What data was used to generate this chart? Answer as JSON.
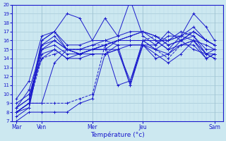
{
  "xlabel": "Température (°c)",
  "ylim": [
    7,
    20
  ],
  "xlim": [
    0,
    100
  ],
  "yticks": [
    7,
    8,
    9,
    10,
    11,
    12,
    13,
    14,
    15,
    16,
    17,
    18,
    19,
    20
  ],
  "xtick_positions": [
    2,
    14,
    38,
    62,
    96
  ],
  "xtick_labels": [
    "Mar",
    "Ven",
    "Mer",
    "Jeu",
    "Sam"
  ],
  "bg_color": "#cce8f0",
  "line_color": "#1a1acc",
  "grid_major_color": "#9bbfcf",
  "grid_minor_color": "#b8d8e8",
  "series": [
    {
      "x": [
        2,
        8,
        14,
        20,
        26,
        32,
        38,
        44,
        50,
        56,
        62,
        68,
        74,
        80,
        86,
        92,
        96
      ],
      "y": [
        7.5,
        8.5,
        16.0,
        17.0,
        15.5,
        15.5,
        16.0,
        18.5,
        16.5,
        20.5,
        16.5,
        15.5,
        16.5,
        16.5,
        19.0,
        17.5,
        16.0
      ],
      "dashed": false
    },
    {
      "x": [
        2,
        8,
        14,
        20,
        26,
        32,
        38,
        44,
        50,
        56,
        62,
        68,
        74,
        80,
        86,
        92,
        96
      ],
      "y": [
        8.0,
        9.0,
        15.5,
        16.0,
        15.0,
        15.0,
        15.5,
        16.0,
        15.5,
        11.0,
        16.0,
        15.0,
        16.0,
        17.0,
        16.5,
        14.5,
        15.0
      ],
      "dashed": false
    },
    {
      "x": [
        2,
        8,
        14,
        20,
        26,
        32,
        38,
        44,
        50,
        56,
        62,
        68,
        74,
        80,
        86,
        92,
        96
      ],
      "y": [
        8.0,
        8.5,
        15.0,
        15.5,
        14.5,
        14.5,
        15.0,
        15.5,
        11.0,
        11.5,
        16.0,
        16.0,
        16.0,
        16.5,
        16.0,
        14.0,
        14.5
      ],
      "dashed": false
    },
    {
      "x": [
        2,
        8,
        14,
        20,
        26,
        32,
        38,
        44,
        50,
        56,
        62,
        68,
        74,
        80,
        86,
        92,
        96
      ],
      "y": [
        8.5,
        9.5,
        14.5,
        15.0,
        14.0,
        14.5,
        15.0,
        15.0,
        15.0,
        11.0,
        15.5,
        14.0,
        14.5,
        15.5,
        15.5,
        14.0,
        14.5
      ],
      "dashed": false
    },
    {
      "x": [
        2,
        8,
        14,
        20,
        26,
        32,
        38,
        44,
        50,
        56,
        62,
        68,
        74,
        80,
        86,
        92,
        96
      ],
      "y": [
        9.0,
        10.0,
        14.0,
        15.0,
        14.0,
        14.0,
        14.5,
        14.5,
        15.0,
        11.5,
        15.5,
        15.5,
        17.0,
        16.0,
        15.0,
        14.5,
        14.5
      ],
      "dashed": false
    },
    {
      "x": [
        2,
        8,
        14,
        20,
        26,
        32,
        38,
        44,
        50,
        56,
        62,
        68,
        74,
        80,
        86,
        92,
        96
      ],
      "y": [
        8.0,
        9.0,
        14.0,
        14.5,
        15.0,
        15.0,
        15.5,
        15.5,
        16.0,
        16.0,
        16.0,
        15.0,
        14.0,
        15.5,
        16.0,
        14.5,
        14.0
      ],
      "dashed": true
    },
    {
      "x": [
        2,
        8,
        14,
        20,
        26,
        32,
        38,
        44,
        50,
        56,
        62,
        68,
        74,
        80,
        86,
        92,
        96
      ],
      "y": [
        8.5,
        10.5,
        15.0,
        16.0,
        15.0,
        15.0,
        15.0,
        15.0,
        16.0,
        16.5,
        17.0,
        16.0,
        15.0,
        16.5,
        17.5,
        16.0,
        15.5
      ],
      "dashed": false
    },
    {
      "x": [
        2,
        8,
        14,
        20,
        26,
        32,
        38,
        44,
        50,
        56,
        62,
        68,
        74,
        80,
        86,
        92,
        96
      ],
      "y": [
        8.0,
        9.0,
        9.0,
        13.5,
        15.0,
        14.5,
        14.5,
        14.5,
        15.5,
        15.5,
        15.5,
        14.5,
        13.5,
        14.5,
        16.0,
        14.5,
        14.0
      ],
      "dashed": false
    },
    {
      "x": [
        2,
        8,
        14,
        20,
        26,
        32,
        38,
        44,
        50,
        56,
        62,
        68,
        74,
        80,
        86,
        92,
        96
      ],
      "y": [
        7.0,
        8.0,
        8.0,
        8.0,
        8.0,
        9.0,
        9.5,
        14.5,
        15.0,
        15.5,
        15.5,
        15.0,
        14.5,
        16.0,
        16.5,
        15.0,
        15.0
      ],
      "dashed": false
    },
    {
      "x": [
        2,
        8,
        14,
        20,
        26,
        32,
        38,
        44,
        50,
        56,
        62,
        68,
        74,
        80,
        86,
        92,
        96
      ],
      "y": [
        9.5,
        11.5,
        16.5,
        17.0,
        15.0,
        14.5,
        15.0,
        15.5,
        16.0,
        16.5,
        17.0,
        16.5,
        15.5,
        16.0,
        17.0,
        16.0,
        15.5
      ],
      "dashed": false
    },
    {
      "x": [
        2,
        8,
        14,
        20,
        26,
        32,
        38,
        44,
        50,
        56,
        62,
        68,
        74,
        80,
        86,
        92,
        96
      ],
      "y": [
        8.0,
        9.0,
        9.0,
        9.0,
        9.0,
        9.5,
        10.0,
        15.5,
        16.0,
        16.0,
        16.0,
        16.5,
        16.0,
        16.5,
        17.0,
        16.0,
        15.5
      ],
      "dashed": true
    },
    {
      "x": [
        2,
        8,
        14,
        20,
        26,
        32,
        38,
        44,
        50,
        56,
        62,
        68,
        74,
        80,
        86,
        92,
        96
      ],
      "y": [
        8.5,
        9.5,
        16.0,
        17.0,
        19.0,
        18.5,
        16.0,
        16.0,
        16.5,
        17.0,
        17.0,
        16.5,
        15.5,
        16.0,
        17.0,
        16.0,
        15.5
      ],
      "dashed": false
    },
    {
      "x": [
        2,
        8,
        14,
        20,
        26,
        32,
        38,
        44,
        50,
        56,
        62,
        68,
        74,
        80,
        86,
        92,
        96
      ],
      "y": [
        8.0,
        9.0,
        15.5,
        16.5,
        15.0,
        14.5,
        15.0,
        15.5,
        16.0,
        16.0,
        16.0,
        16.0,
        15.0,
        15.5,
        16.0,
        15.5,
        15.0
      ],
      "dashed": false
    }
  ]
}
